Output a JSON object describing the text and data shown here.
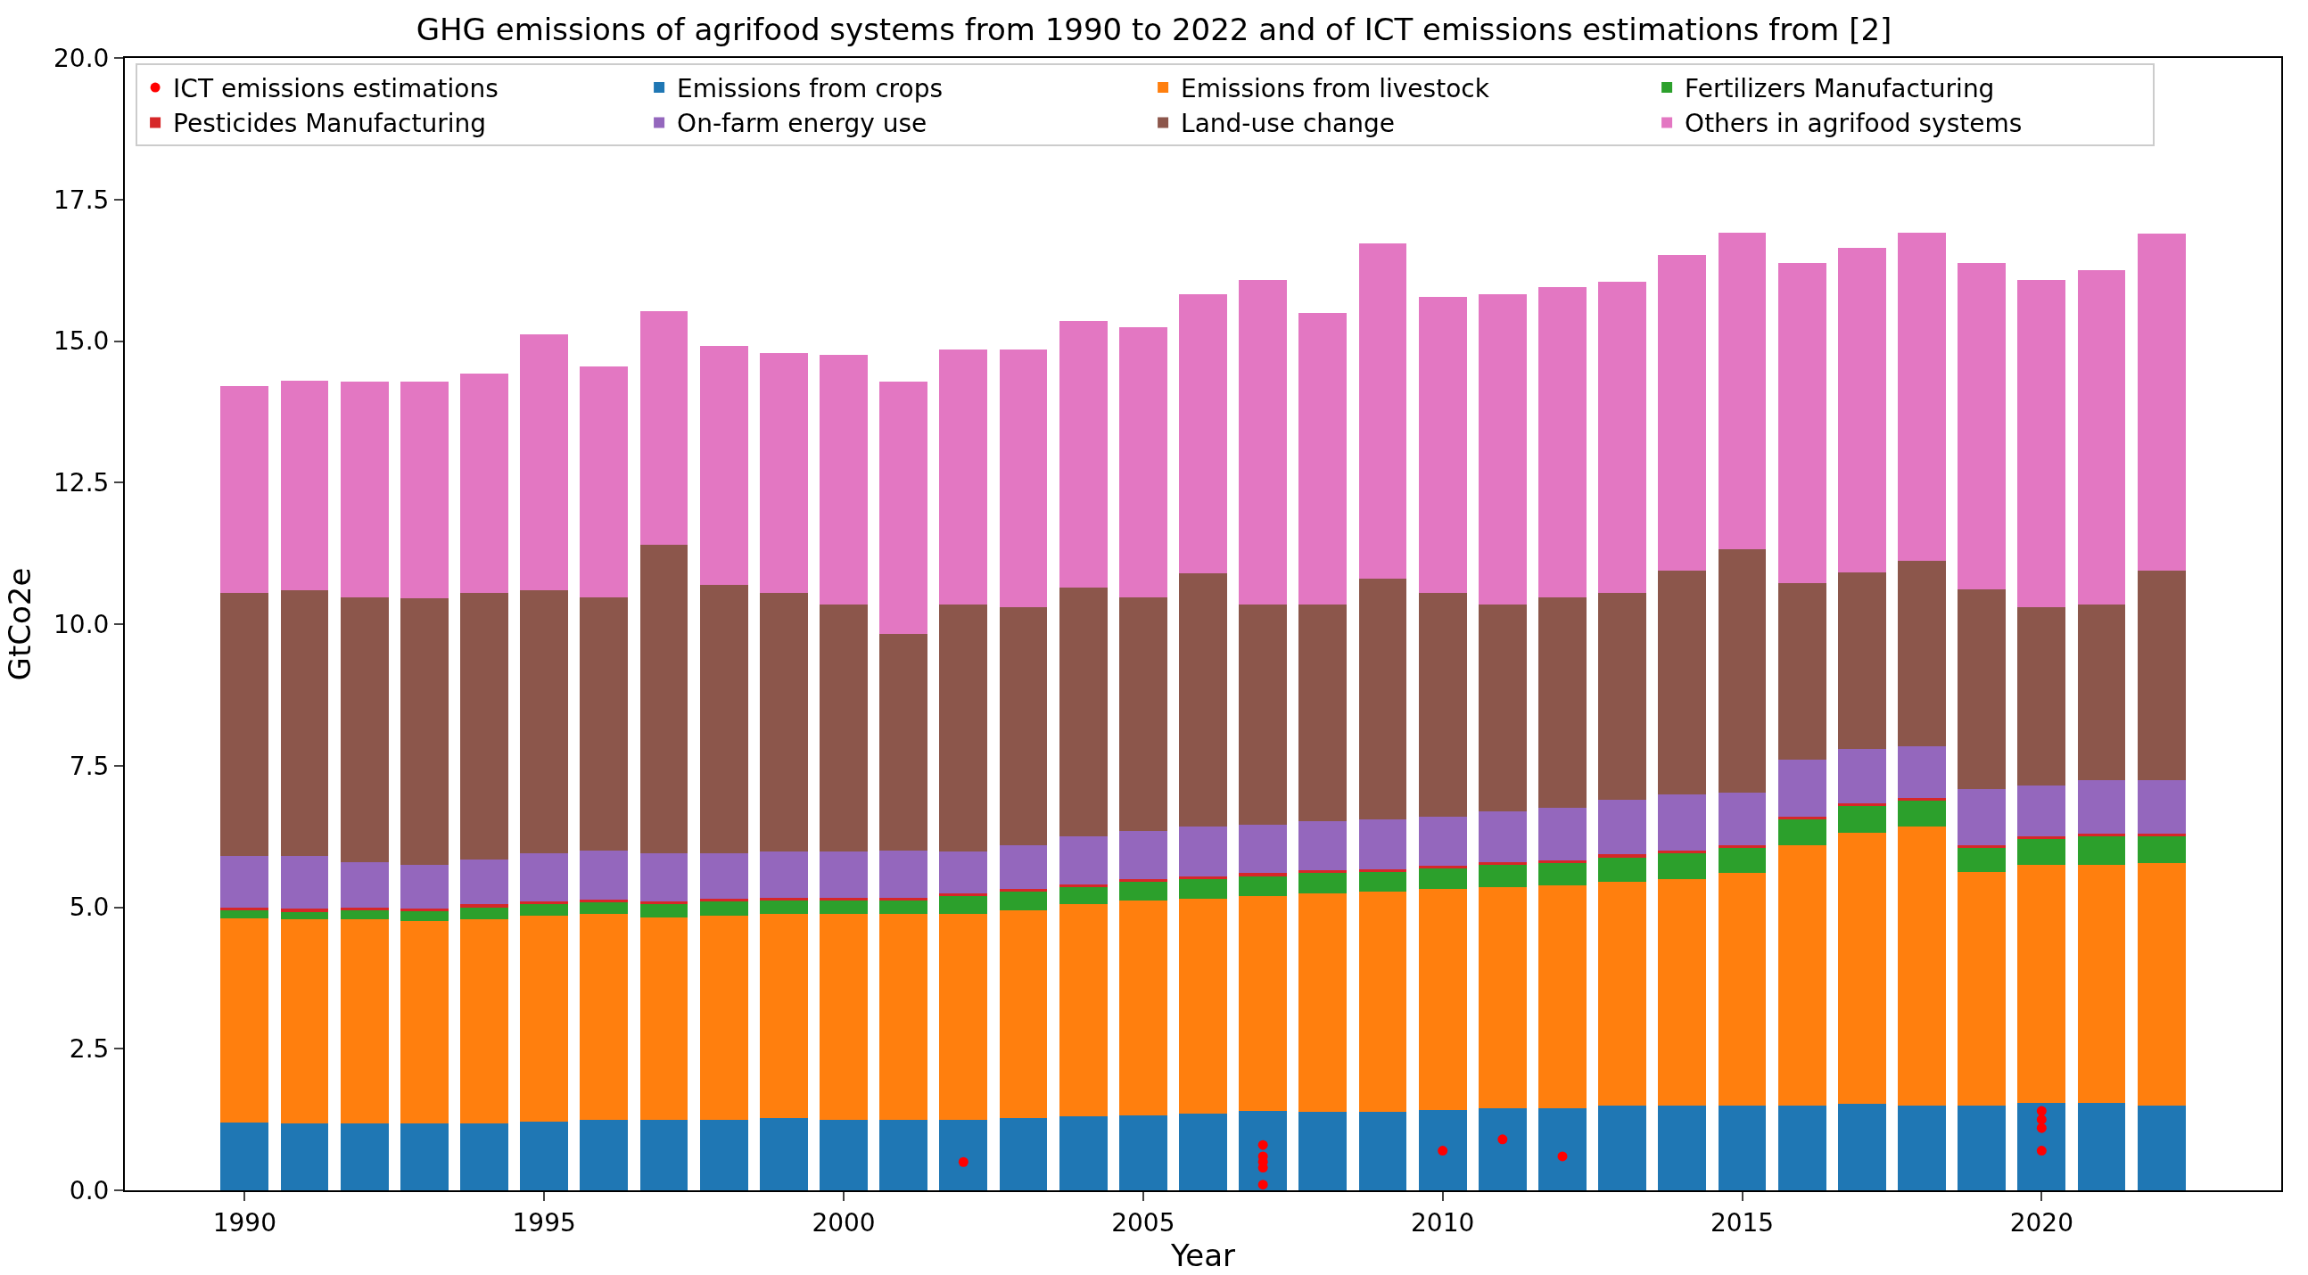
{
  "chart_data": {
    "type": "bar",
    "stacked": true,
    "title": "GHG emissions of agrifood systems from 1990 to 2022 and of ICT emissions estimations from [2]",
    "xlabel": "Year",
    "ylabel": "GtCo2e",
    "x": [
      1990,
      1991,
      1992,
      1993,
      1994,
      1995,
      1996,
      1997,
      1998,
      1999,
      2000,
      2001,
      2002,
      2003,
      2004,
      2005,
      2006,
      2007,
      2008,
      2009,
      2010,
      2011,
      2012,
      2013,
      2014,
      2015,
      2016,
      2017,
      2018,
      2019,
      2020,
      2021,
      2022
    ],
    "xlim": [
      1988,
      2024
    ],
    "xticks": [
      1990,
      1995,
      2000,
      2005,
      2010,
      2015,
      2020
    ],
    "ylim": [
      0,
      20
    ],
    "yticks": [
      {
        "value": 0,
        "label": "0.0"
      },
      {
        "value": 2.5,
        "label": "2.5"
      },
      {
        "value": 5,
        "label": "5.0"
      },
      {
        "value": 7.5,
        "label": "7.5"
      },
      {
        "value": 10,
        "label": "10.0"
      },
      {
        "value": 12.5,
        "label": "12.5"
      },
      {
        "value": 15,
        "label": "15.0"
      },
      {
        "value": 17.5,
        "label": "17.5"
      },
      {
        "value": 20,
        "label": "20.0"
      }
    ],
    "grid": false,
    "legend": "top left",
    "series": [
      {
        "name": "ICT emissions estimations",
        "type": "scatter",
        "marker": "circle",
        "color": "#ff0000",
        "x": [
          2002,
          2007,
          2007,
          2007,
          2007,
          2007,
          2010,
          2011,
          2012,
          2020,
          2020,
          2020,
          2020
        ],
        "values": [
          0.5,
          0.8,
          0.6,
          0.5,
          0.4,
          0.1,
          0.7,
          0.9,
          0.6,
          1.4,
          1.25,
          1.1,
          0.7
        ]
      },
      {
        "name": "Emissions from crops",
        "color": "#1f77b4",
        "values": [
          1.2,
          1.18,
          1.18,
          1.18,
          1.18,
          1.22,
          1.25,
          1.25,
          1.25,
          1.28,
          1.25,
          1.25,
          1.25,
          1.28,
          1.3,
          1.32,
          1.35,
          1.4,
          1.38,
          1.38,
          1.42,
          1.45,
          1.45,
          1.5,
          1.5,
          1.5,
          1.5,
          1.52,
          1.5,
          1.5,
          1.55,
          1.55,
          1.5
        ]
      },
      {
        "name": "Emissions from livestock",
        "color": "#ff7f0e",
        "values": [
          3.6,
          3.6,
          3.6,
          3.57,
          3.6,
          3.63,
          3.63,
          3.57,
          3.6,
          3.6,
          3.63,
          3.63,
          3.63,
          3.67,
          3.75,
          3.8,
          3.8,
          3.8,
          3.87,
          3.9,
          3.9,
          3.9,
          3.93,
          3.95,
          4.0,
          4.1,
          4.6,
          4.8,
          4.92,
          4.12,
          4.2,
          4.2,
          4.28
        ]
      },
      {
        "name": "Fertilizers Manufacturing",
        "color": "#2ca02c",
        "values": [
          0.15,
          0.14,
          0.17,
          0.18,
          0.22,
          0.2,
          0.2,
          0.23,
          0.25,
          0.24,
          0.24,
          0.24,
          0.32,
          0.32,
          0.3,
          0.33,
          0.35,
          0.35,
          0.35,
          0.34,
          0.36,
          0.4,
          0.4,
          0.43,
          0.45,
          0.45,
          0.45,
          0.46,
          0.46,
          0.43,
          0.45,
          0.5,
          0.47
        ]
      },
      {
        "name": "Pesticides Manufacturing",
        "color": "#d62728",
        "values": [
          0.05,
          0.05,
          0.05,
          0.05,
          0.05,
          0.05,
          0.05,
          0.05,
          0.05,
          0.05,
          0.05,
          0.05,
          0.05,
          0.05,
          0.05,
          0.05,
          0.05,
          0.05,
          0.05,
          0.05,
          0.05,
          0.05,
          0.05,
          0.05,
          0.05,
          0.05,
          0.05,
          0.05,
          0.05,
          0.05,
          0.05,
          0.05,
          0.05
        ]
      },
      {
        "name": "On-farm energy use",
        "color": "#9467bd",
        "values": [
          0.9,
          0.93,
          0.8,
          0.77,
          0.8,
          0.85,
          0.87,
          0.85,
          0.8,
          0.81,
          0.81,
          0.83,
          0.73,
          0.78,
          0.85,
          0.85,
          0.87,
          0.85,
          0.87,
          0.88,
          0.87,
          0.9,
          0.92,
          0.97,
          1.0,
          0.92,
          1.0,
          0.97,
          0.92,
          0.98,
          0.9,
          0.95,
          0.95
        ]
      },
      {
        "name": "Land-use change",
        "color": "#8c564b",
        "values": [
          4.65,
          4.7,
          4.68,
          4.7,
          4.7,
          4.65,
          4.48,
          5.45,
          4.75,
          4.57,
          4.37,
          3.82,
          4.37,
          4.2,
          4.4,
          4.13,
          4.48,
          3.9,
          3.83,
          4.25,
          3.95,
          3.65,
          3.73,
          3.65,
          3.95,
          4.3,
          3.12,
          3.12,
          3.27,
          3.54,
          3.15,
          3.1,
          3.7
        ]
      },
      {
        "name": "Others in agrifood systems",
        "color": "#e377c2",
        "values": [
          3.65,
          3.7,
          3.8,
          3.83,
          3.87,
          4.52,
          4.07,
          4.12,
          4.22,
          4.23,
          4.4,
          4.46,
          4.5,
          4.55,
          4.7,
          4.77,
          4.92,
          5.73,
          5.15,
          5.92,
          5.23,
          5.47,
          5.47,
          5.5,
          5.57,
          5.6,
          5.66,
          5.73,
          5.8,
          5.76,
          5.78,
          5.9,
          5.95
        ]
      }
    ]
  }
}
